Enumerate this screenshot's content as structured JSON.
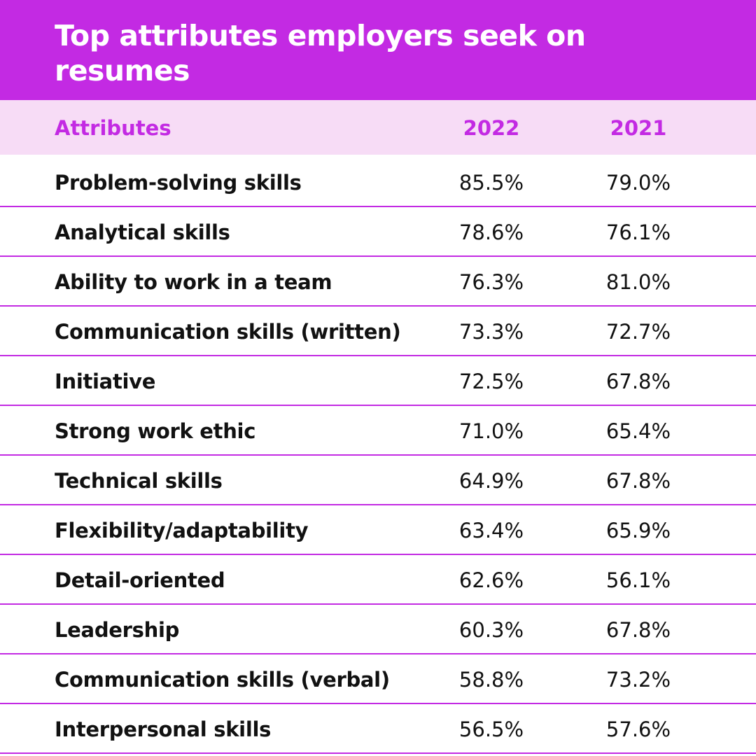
{
  "chart_data": {
    "type": "table",
    "title": "Top attributes employers seek on resumes",
    "columns": [
      "Attributes",
      "2022",
      "2021"
    ],
    "rows": [
      {
        "attribute": "Problem-solving skills",
        "v2022": "85.5%",
        "v2021": "79.0%"
      },
      {
        "attribute": "Analytical skills",
        "v2022": "78.6%",
        "v2021": "76.1%"
      },
      {
        "attribute": "Ability to work in a team",
        "v2022": "76.3%",
        "v2021": "81.0%"
      },
      {
        "attribute": "Communication skills (written)",
        "v2022": "73.3%",
        "v2021": "72.7%"
      },
      {
        "attribute": "Initiative",
        "v2022": "72.5%",
        "v2021": "67.8%"
      },
      {
        "attribute": "Strong work ethic",
        "v2022": "71.0%",
        "v2021": "65.4%"
      },
      {
        "attribute": "Technical skills",
        "v2022": "64.9%",
        "v2021": "67.8%"
      },
      {
        "attribute": "Flexibility/adaptability",
        "v2022": "63.4%",
        "v2021": "65.9%"
      },
      {
        "attribute": "Detail-oriented",
        "v2022": "62.6%",
        "v2021": "56.1%"
      },
      {
        "attribute": "Leadership",
        "v2022": "60.3%",
        "v2021": "67.8%"
      },
      {
        "attribute": "Communication skills (verbal)",
        "v2022": "58.8%",
        "v2021": "73.2%"
      },
      {
        "attribute": "Interpersonal skills",
        "v2022": "56.5%",
        "v2021": "57.6%"
      }
    ]
  },
  "colors": {
    "accent": "#c32ae3",
    "header_row_bg": "#f7dcf6",
    "text": "#111111"
  }
}
